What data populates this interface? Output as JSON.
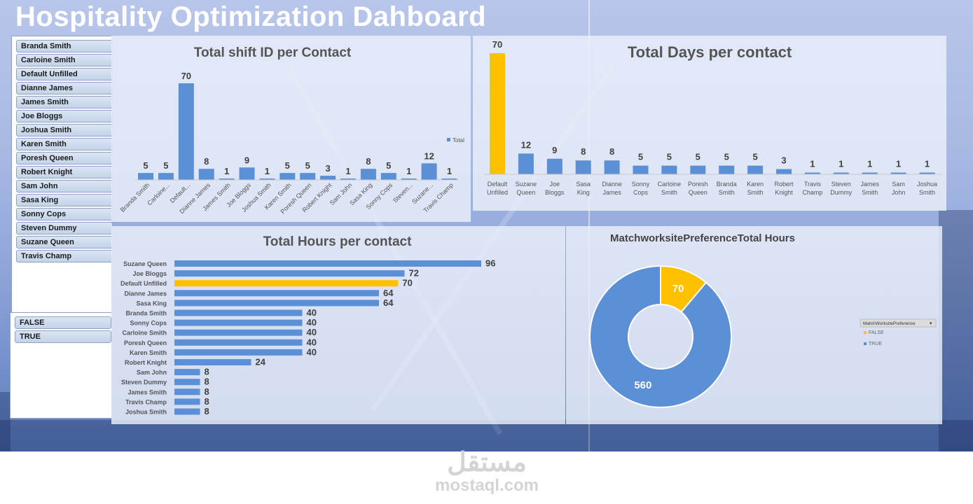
{
  "title": "Hospitality Optimization Dahboard",
  "slicer_contacts": [
    "Branda Smith",
    "Carloine Smith",
    "Default Unfilled",
    "Dianne James",
    "James Smith",
    "Joe Bloggs",
    "Joshua Smith",
    "Karen Smith",
    "Poresh Queen",
    "Robert Knight",
    "Sam John",
    "Sasa King",
    "Sonny Cops",
    "Steven Dummy",
    "Suzane Queen",
    "Travis Champ"
  ],
  "slicer_bool": [
    "FALSE",
    "TRUE"
  ],
  "colors": {
    "blue": "#5b8fd6",
    "highlight": "#ffc000",
    "label": "#404040"
  },
  "chart_data": [
    {
      "type": "bar",
      "title": "Total shift ID per Contact",
      "categories": [
        "Branda Smith",
        "Carloine...",
        "Default...",
        "Dianne James",
        "James Smith",
        "Joe Bloggs",
        "Joshua Smith",
        "Karen Smith",
        "Poresh Queen",
        "Robert Knight",
        "Sam John",
        "Sasa King",
        "Sonny Cops",
        "Steven...",
        "Suzane...",
        "Travis Champ"
      ],
      "values": [
        5,
        5,
        70,
        8,
        1,
        9,
        1,
        5,
        5,
        3,
        1,
        8,
        5,
        1,
        12,
        1
      ],
      "legend": "Total",
      "ylim": [
        0,
        70
      ]
    },
    {
      "type": "bar",
      "title": "Total Days per contact",
      "categories": [
        "Default Unfilled",
        "Suzane Queen",
        "Joe Bloggs",
        "Sasa King",
        "Dianne James",
        "Sonny Cops",
        "Carloine Smith",
        "Poresh Queen",
        "Branda Smith",
        "Karen Smith",
        "Robert Knight",
        "Travis Champ",
        "Steven Dummy",
        "James Smith",
        "Sam John",
        "Joshua Smith"
      ],
      "values": [
        70,
        12,
        9,
        8,
        8,
        5,
        5,
        5,
        5,
        5,
        3,
        1,
        1,
        1,
        1,
        1
      ],
      "highlight": "Default Unfilled",
      "ylim": [
        0,
        70
      ]
    },
    {
      "type": "bar",
      "orientation": "horizontal",
      "title": "Total Hours per contact",
      "categories": [
        "Suzane Queen",
        "Joe Bloggs",
        "Default Unfilled",
        "Dianne James",
        "Sasa King",
        "Branda Smith",
        "Sonny Cops",
        "Carloine Smith",
        "Poresh Queen",
        "Karen Smith",
        "Robert Knight",
        "Sam John",
        "Steven Dummy",
        "James Smith",
        "Travis Champ",
        "Joshua Smith"
      ],
      "values": [
        96,
        72,
        70,
        64,
        64,
        40,
        40,
        40,
        40,
        40,
        24,
        8,
        8,
        8,
        8,
        8
      ],
      "highlight": "Default Unfilled",
      "xlim": [
        0,
        96
      ]
    },
    {
      "type": "pie",
      "donut": true,
      "title": "MatchworksitePreferenceTotal Hours",
      "labels": [
        "FALSE",
        "TRUE"
      ],
      "values": [
        70,
        560
      ],
      "legend_title": "MatchWorksitePreference",
      "legend_position": "right"
    }
  ],
  "watermark": {
    "arabic": "مستقل",
    "latin": "mostaql.com"
  }
}
